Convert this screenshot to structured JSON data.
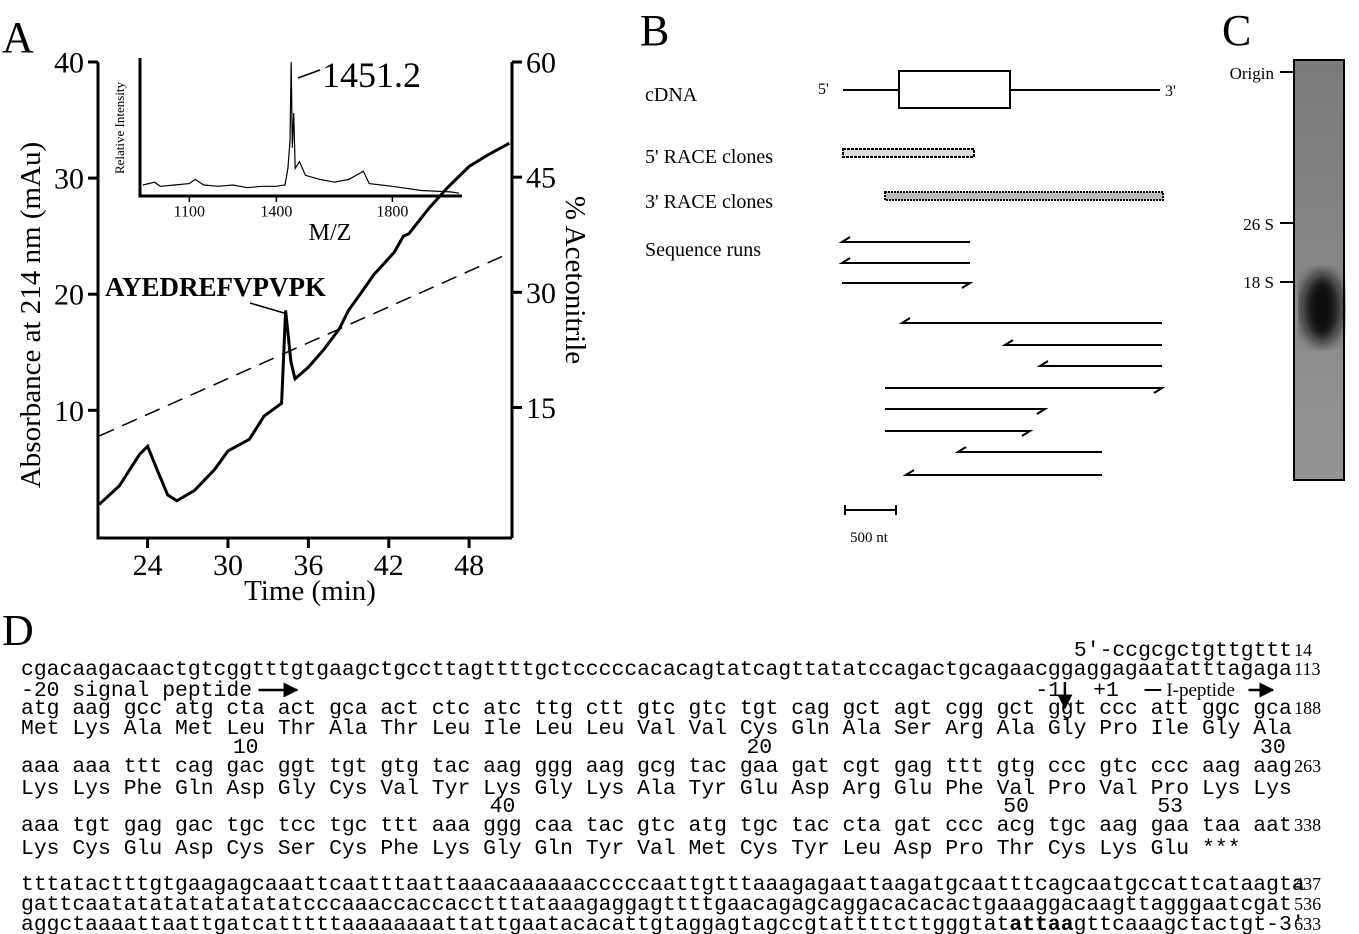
{
  "chart_data": [
    {
      "type": "line",
      "panel_label": "A",
      "xlabel": "Time (min)",
      "ylabel": "Absorbance at 214 nm (mAu)",
      "y2label": "% Acetonitrile",
      "xlim": [
        20.3,
        51.2
      ],
      "xticks": [
        24,
        30,
        36,
        42,
        48
      ],
      "ylim": [
        -1,
        40
      ],
      "yticks": [
        10,
        20,
        30,
        40
      ],
      "y2lim": [
        -2,
        60
      ],
      "y2ticks": [
        15,
        30,
        45,
        60
      ],
      "series": [
        {
          "color": "#000000",
          "x": [
            20.4,
            21.9,
            23.4,
            24,
            24.7,
            25.5,
            26.2,
            27.5,
            29,
            30,
            31.6,
            32.7,
            34,
            34.3,
            34.7,
            35,
            36,
            37.2,
            38.3,
            39,
            39.8,
            40.9,
            42.4,
            43.1,
            43.5,
            45,
            46.4,
            48,
            49.4,
            51
          ],
          "values": [
            1.9,
            3.5,
            6.2,
            6.9,
            4.9,
            2.7,
            2.2,
            3.1,
            4.9,
            6.5,
            7.5,
            9.5,
            10.6,
            18.6,
            14.2,
            12.7,
            13.7,
            15.3,
            17,
            18.6,
            19.9,
            21.7,
            23.6,
            25,
            25.2,
            27.4,
            29.2,
            31,
            32,
            33
          ]
        },
        {
          "color": "#000000",
          "axis": "y2",
          "dashed": true,
          "x": [
            20.4,
            51
          ],
          "values": [
            11.3,
            35.1
          ]
        }
      ],
      "annotations": [
        {
          "text": "AYEDREFVPVPK"
        }
      ]
    },
    {
      "type": "line",
      "xlabel": "M/Z",
      "ylabel": "Relative Intensity",
      "xlim": [
        930,
        2040
      ],
      "xticks": [
        1100,
        1400,
        1800
      ],
      "ylim": [
        0,
        100
      ],
      "series": [
        {
          "color": "#000000",
          "x": [
            940,
            980,
            1000,
            1050,
            1100,
            1120,
            1150,
            1200,
            1250,
            1300,
            1350,
            1400,
            1430,
            1440,
            1447,
            1451.2,
            1455,
            1460,
            1465,
            1480,
            1500,
            1550,
            1600,
            1650,
            1700,
            1720,
            1800,
            1900,
            2000,
            2030
          ],
          "values": [
            8,
            10,
            7,
            8,
            9,
            12,
            8,
            7,
            8,
            6,
            7,
            7,
            8,
            20,
            40,
            97,
            35,
            60,
            20,
            25,
            15,
            12,
            10,
            12,
            18,
            9,
            7,
            4,
            3,
            2
          ]
        }
      ],
      "annotations": [
        {
          "text": "1451.2"
        }
      ]
    }
  ],
  "diagram": {
    "panel_label": "B",
    "labels": [
      "cDNA",
      "5' RACE clones",
      "3' RACE clones",
      "Sequence runs"
    ],
    "end5": "5'",
    "end3": "3'",
    "scale": "500 nt"
  },
  "gel": {
    "panel_label": "C",
    "markers": [
      "Origin",
      "26 S",
      "18 S"
    ]
  },
  "sequence": {
    "panel_label": "D",
    "rows": [
      {
        "text": "5'-ccgcgctgttgttt",
        "count": 14
      },
      {
        "text": "cgacaagacaactgtcggtttgtgaagctgccttagttttgctcccccacacagtatcagttatatccagactgcagaacggaggagaatatttagaga",
        "count": 113
      },
      {
        "signal": "-20 signal peptide",
        "minus": "-1",
        "plus": "+1",
        "peptide": "I-peptide"
      },
      {
        "text": "atg aag gcc atg cta act gca act ctc atc ttg ctt gtc gtc tgt cag gct agt cgg gct ggt ccc att ggc gca",
        "count": 188
      },
      {
        "text": "Met Lys Ala Met Leu Thr Ala Thr Leu Ile Leu Leu Val Val Cys Gln Ala Ser Arg Ala Gly Pro Ile Gly Ala"
      },
      {
        "markers": [
          10,
          20,
          30
        ]
      },
      {
        "text": "aaa aaa ttt cag gac ggt tgt gtg tac aag ggg aag gcg tac gaa gat cgt gag ttt gtg ccc gtc ccc aag aag",
        "count": 263
      },
      {
        "text": "Lys Lys Phe Gln Asp Gly Cys Val Tyr Lys Gly Lys Ala Tyr Glu Asp Arg Glu Phe Val Pro Val Pro Lys Lys"
      },
      {
        "markers": [
          40,
          50,
          53
        ]
      },
      {
        "text": "aaa tgt gag gac tgc tcc tgc ttt aaa ggg caa tac gtc atg tgc tac cta gat ccc acg tgc aag gaa taa aat",
        "count": 338
      },
      {
        "text": "Lys Cys Glu Asp Cys Ser Cys Phe Lys Gly Gln Tyr Val Met Cys Tyr Leu Asp Pro Thr Cys Lys Glu ***"
      },
      {
        "text": "tttatactttgtgaagagcaaattcaatttaattaaacaaaaaacccccaattgtttaaagagaattaagatgcaatttcagcaatgccattcataagta",
        "count": 437
      },
      {
        "text": "gattcaatatatatatatatatcccaaaccaccacctttataaagaggagttttgaacagagcaggacacacactgaaaggacaagttagggaatcgat",
        "count": 536
      },
      {
        "parts": [
          "aggctaaaattaattgatcatttttaaaaaaaattattgaatacacattgtaggagtagccgtattttcttgggtat",
          "attaa",
          "gttcaaagctactgt-3'"
        ],
        "count": 633
      }
    ]
  }
}
